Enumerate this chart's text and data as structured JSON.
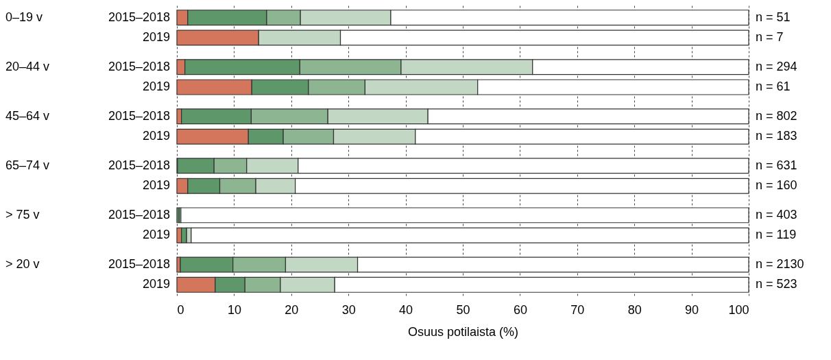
{
  "chart_data": {
    "type": "bar",
    "orientation": "horizontal",
    "stacked": true,
    "xlabel": "Osuus potilaista (%)",
    "categories": [
      "2015–2018",
      "2019",
      "2015–2018",
      "2019",
      "2015–2018",
      "2019",
      "2015–2018",
      "2019",
      "2015–2018",
      "2019",
      "2015–2018",
      "2019"
    ],
    "series": [
      {
        "color": "#d4765c",
        "values": [
          1.9,
          14.3,
          1.4,
          13.1,
          0.8,
          12.5,
          0.1,
          1.9,
          0,
          0.8,
          0.6,
          6.7
        ]
      },
      {
        "color": "#5e976a",
        "values": [
          13.8,
          0,
          20.1,
          9.9,
          12.2,
          6.1,
          6.4,
          5.6,
          0.4,
          0.9,
          9.2,
          5.2
        ]
      },
      {
        "color": "#8db591",
        "values": [
          5.9,
          0,
          17.7,
          9.9,
          13.4,
          8.8,
          5.7,
          6.3,
          0.3,
          0,
          9.2,
          6.2
        ]
      },
      {
        "color": "#c2d8c4",
        "values": [
          15.8,
          14.3,
          23.0,
          19.7,
          17.5,
          14.3,
          9.0,
          6.9,
          0,
          0.8,
          12.6,
          9.5
        ]
      },
      {
        "color": "#ffffff",
        "values": [
          62.6,
          71.4,
          37.8,
          47.4,
          56.1,
          58.3,
          78.8,
          79.3,
          99.3,
          97.5,
          68.4,
          72.4
        ]
      }
    ],
    "annotations": [
      "0–19 v",
      "20–44 v",
      "45–64 v",
      "65–74 v",
      "> 75 v",
      "> 20 v",
      "n = 51",
      "n = 7",
      "n = 294",
      "n = 61",
      "n = 802",
      "n = 183",
      "n = 631",
      "n = 160",
      "n = 403",
      "n = 119",
      "n = 2130",
      "n = 523"
    ],
    "xlim": [
      0,
      100
    ],
    "xticks": [
      0,
      10,
      20,
      30,
      40,
      50,
      60,
      70,
      80,
      90,
      100
    ],
    "grid": "x",
    "legend": false
  }
}
